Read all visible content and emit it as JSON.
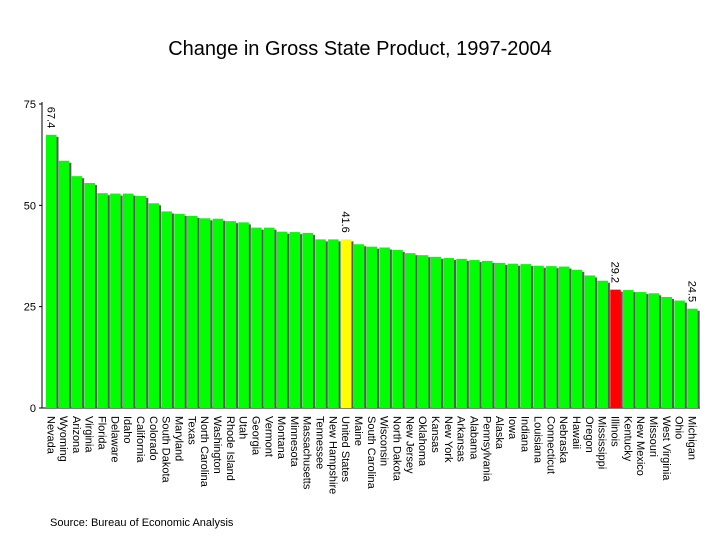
{
  "chart_data": {
    "type": "bar",
    "title": "Change in Gross State Product, 1997-2004",
    "xlabel": "",
    "ylabel": "",
    "ylim": [
      0,
      75
    ],
    "yticks": [
      0,
      25,
      50,
      75
    ],
    "grid": false,
    "categories": [
      "Nevada",
      "Wyoming",
      "Arizona",
      "Virginia",
      "Florida",
      "Delaware",
      "Idaho",
      "California",
      "Colorado",
      "South Dakota",
      "Maryland",
      "Texas",
      "North Carolina",
      "Washington",
      "Rhode Island",
      "Utah",
      "Georgia",
      "Vermont",
      "Montana",
      "Minnesota",
      "Massachusetts",
      "Tennessee",
      "New Hampshire",
      "United States",
      "Maine",
      "South Carolina",
      "Wisconsin",
      "North Dakota",
      "New Jersey",
      "Oklahoma",
      "Kansas",
      "New York",
      "Arkansas",
      "Alabama",
      "Pennsylvania",
      "Alaska",
      "Iowa",
      "Indiana",
      "Louisiana",
      "Connecticut",
      "Nebraska",
      "Hawaii",
      "Oregon",
      "Mississippi",
      "Illinois",
      "Kentucky",
      "New Mexico",
      "Missouri",
      "West Virginia",
      "Ohio",
      "Michigan"
    ],
    "values": [
      67.4,
      61.0,
      57.2,
      55.5,
      53.0,
      52.9,
      52.9,
      52.3,
      50.5,
      48.5,
      47.9,
      47.4,
      46.8,
      46.7,
      46.1,
      45.8,
      44.5,
      44.5,
      43.5,
      43.4,
      43.2,
      41.6,
      41.6,
      41.6,
      40.4,
      39.8,
      39.6,
      39.0,
      38.2,
      37.7,
      37.3,
      37.0,
      36.8,
      36.5,
      36.3,
      35.8,
      35.6,
      35.5,
      35.1,
      35.0,
      34.9,
      34.1,
      32.7,
      31.4,
      29.2,
      29.1,
      28.6,
      28.3,
      27.4,
      26.5,
      24.5
    ],
    "highlight": {
      "United States": "#ffff00",
      "Illinois": "#ff0000"
    },
    "data_labels": [
      {
        "category": "Nevada",
        "text": "67.4"
      },
      {
        "category": "United States",
        "text": "41.6"
      },
      {
        "category": "Illinois",
        "text": "29.2"
      },
      {
        "category": "Michigan",
        "text": "24.5"
      }
    ],
    "default_color": "#00ff00",
    "source": "Source:  Bureau of Economic Analysis"
  }
}
